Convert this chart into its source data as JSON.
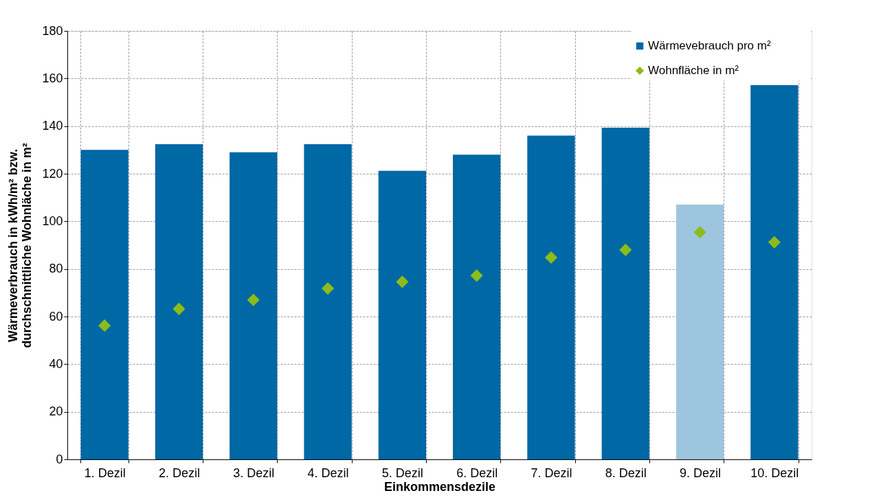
{
  "chart_data": {
    "type": "bar",
    "xlabel": "Einkommensdezile",
    "ylabel": "Wärmeverbrauch in kWh/m² bzw.\ndurchschnittliche Wohnläche in m²",
    "categories": [
      "1. Dezil",
      "2. Dezil",
      "3. Dezil",
      "4. Dezil",
      "5. Dezil",
      "6. Dezil",
      "7. Dezil",
      "8. Dezil",
      "9. Dezil",
      "10. Dezil"
    ],
    "series": [
      {
        "name": "Wärmevebrauch pro m²",
        "color": "#0068a5",
        "colors": [
          "#0068a5",
          "#0068a5",
          "#0068a5",
          "#0068a5",
          "#0068a5",
          "#0068a5",
          "#0068a5",
          "#0068a5",
          "#9ec5de",
          "#0068a5"
        ],
        "values": [
          130,
          132.4,
          129,
          132.4,
          121.2,
          128,
          136,
          139.3,
          107,
          157.2
        ]
      },
      {
        "name": "Wohnfläche in m²",
        "type": "scatter",
        "marker": "diamond",
        "color": "#8cbc1a",
        "values": [
          56.2,
          63.2,
          67,
          71.8,
          74.6,
          77.2,
          84.8,
          88,
          95.4,
          91.2
        ]
      }
    ],
    "ylim": [
      0,
      180
    ],
    "yticks": [
      0,
      20,
      40,
      60,
      80,
      100,
      120,
      140,
      160,
      180
    ],
    "grid": true,
    "legend": "top right"
  }
}
